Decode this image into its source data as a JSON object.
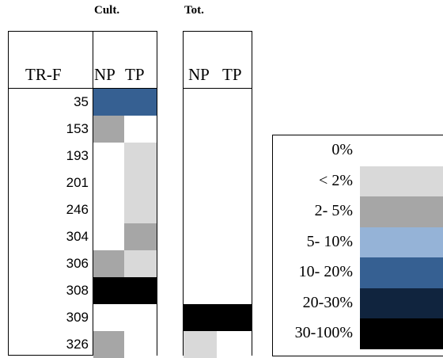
{
  "chart_data": {
    "type": "heatmap",
    "group_labels": [
      "Cult.",
      "Tot."
    ],
    "row_header": "TR-F",
    "column_labels": [
      "NP",
      "TP"
    ],
    "rows": [
      "35",
      "153",
      "193",
      "201",
      "246",
      "304",
      "306",
      "308",
      "309",
      "326"
    ],
    "scale": [
      {
        "label": "0%",
        "color": "#ffffff"
      },
      {
        "label": "< 2%",
        "color": "#d9d9d9"
      },
      {
        "label": "2- 5%",
        "color": "#a6a6a6"
      },
      {
        "label": "5- 10%",
        "color": "#95b3d7"
      },
      {
        "label": "10- 20%",
        "color": "#366092"
      },
      {
        "label": "20-30%",
        "color": "#10243e"
      },
      {
        "label": "30-100%",
        "color": "#000000"
      }
    ],
    "cultured": {
      "NP": [
        "10- 20%",
        "2- 5%",
        "0%",
        "0%",
        "0%",
        "0%",
        "2- 5%",
        "30-100%",
        "0%",
        "2- 5%"
      ],
      "TP": [
        "10- 20%",
        "0%",
        "< 2%",
        "< 2%",
        "< 2%",
        "2- 5%",
        "< 2%",
        "30-100%",
        "0%",
        "0%"
      ]
    },
    "total": {
      "NP": [
        "0%",
        "0%",
        "0%",
        "0%",
        "0%",
        "0%",
        "0%",
        "0%",
        "30-100%",
        "< 2%"
      ],
      "TP": [
        "0%",
        "0%",
        "0%",
        "0%",
        "0%",
        "0%",
        "0%",
        "0%",
        "30-100%",
        "0%"
      ]
    }
  }
}
